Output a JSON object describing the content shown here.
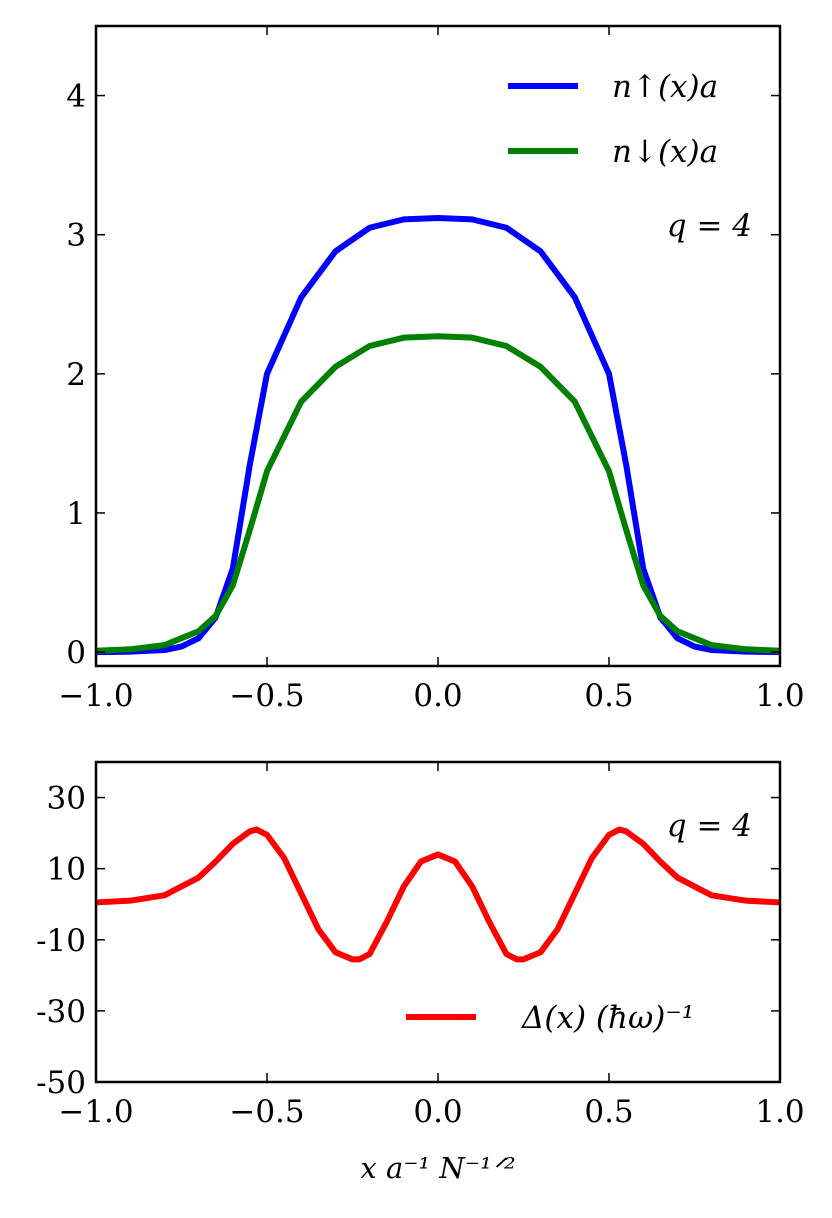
{
  "chart_data": [
    {
      "type": "line",
      "title": "",
      "xlabel": "",
      "ylabel": "",
      "xlim": [
        -1.0,
        1.0
      ],
      "ylim": [
        -0.1,
        4.5
      ],
      "x_ticks": [
        -1.0,
        -0.5,
        0.0,
        0.5,
        1.0
      ],
      "x_tick_labels": [
        "−1.0",
        "−0.5",
        "0.0",
        "0.5",
        "1.0"
      ],
      "y_ticks": [
        0,
        1,
        2,
        3,
        4
      ],
      "y_tick_labels": [
        "0",
        "1",
        "2",
        "3",
        "4"
      ],
      "annotation": "q = 4",
      "legend_position": "top-right",
      "series": [
        {
          "name": "n↑(x)a",
          "color": "#0000ff",
          "x": [
            -1.0,
            -0.9,
            -0.8,
            -0.75,
            -0.7,
            -0.65,
            -0.6,
            -0.55,
            -0.5,
            -0.4,
            -0.3,
            -0.2,
            -0.1,
            0.0,
            0.1,
            0.2,
            0.3,
            0.4,
            0.5,
            0.55,
            0.6,
            0.65,
            0.7,
            0.75,
            0.8,
            0.9,
            1.0
          ],
          "y": [
            0.0,
            0.003,
            0.015,
            0.04,
            0.1,
            0.25,
            0.6,
            1.35,
            2.0,
            2.55,
            2.88,
            3.05,
            3.11,
            3.12,
            3.11,
            3.05,
            2.88,
            2.55,
            2.0,
            1.35,
            0.6,
            0.25,
            0.1,
            0.04,
            0.015,
            0.003,
            0.0
          ]
        },
        {
          "name": "n↓(x)a",
          "color": "#008000",
          "x": [
            -1.0,
            -0.9,
            -0.8,
            -0.75,
            -0.7,
            -0.65,
            -0.6,
            -0.55,
            -0.5,
            -0.4,
            -0.3,
            -0.2,
            -0.1,
            0.0,
            0.1,
            0.2,
            0.3,
            0.4,
            0.5,
            0.55,
            0.6,
            0.65,
            0.7,
            0.75,
            0.8,
            0.9,
            1.0
          ],
          "y": [
            0.01,
            0.02,
            0.05,
            0.1,
            0.15,
            0.26,
            0.48,
            0.88,
            1.3,
            1.8,
            2.05,
            2.2,
            2.26,
            2.27,
            2.26,
            2.2,
            2.05,
            1.8,
            1.3,
            0.88,
            0.48,
            0.26,
            0.15,
            0.1,
            0.05,
            0.02,
            0.01
          ]
        }
      ]
    },
    {
      "type": "line",
      "title": "",
      "xlabel": "x a⁻¹ N⁻¹ᐟ²",
      "ylabel": "",
      "xlim": [
        -1.0,
        1.0
      ],
      "ylim": [
        -50,
        40
      ],
      "x_ticks": [
        -1.0,
        -0.5,
        0.0,
        0.5,
        1.0
      ],
      "x_tick_labels": [
        "−1.0",
        "−0.5",
        "0.0",
        "0.5",
        "1.0"
      ],
      "y_ticks": [
        30,
        10,
        -10,
        -30,
        -50
      ],
      "y_tick_labels": [
        "30",
        "10",
        "-10",
        "-30",
        "-50"
      ],
      "annotation": "q = 4",
      "legend_position": "bottom-right",
      "series": [
        {
          "name": "Δ(x) (ħω)⁻¹",
          "color": "#ff0000",
          "x": [
            -1.0,
            -0.9,
            -0.8,
            -0.7,
            -0.65,
            -0.6,
            -0.55,
            -0.53,
            -0.5,
            -0.45,
            -0.4,
            -0.35,
            -0.3,
            -0.25,
            -0.23,
            -0.2,
            -0.15,
            -0.1,
            -0.05,
            0.0,
            0.05,
            0.1,
            0.15,
            0.2,
            0.23,
            0.25,
            0.3,
            0.35,
            0.4,
            0.45,
            0.5,
            0.53,
            0.55,
            0.6,
            0.65,
            0.7,
            0.8,
            0.9,
            1.0
          ],
          "y": [
            0.5,
            1.0,
            2.5,
            7.5,
            12.0,
            17.0,
            20.5,
            21.0,
            19.5,
            13.0,
            3.0,
            -7.0,
            -13.5,
            -15.5,
            -15.5,
            -14.0,
            -5.0,
            5.0,
            12.0,
            14.0,
            12.0,
            5.0,
            -5.0,
            -14.0,
            -15.5,
            -15.5,
            -13.5,
            -7.0,
            3.0,
            13.0,
            19.5,
            21.0,
            20.5,
            17.0,
            12.0,
            7.5,
            2.5,
            1.0,
            0.5
          ]
        }
      ]
    }
  ],
  "x_axis_label": "x a⁻¹ N⁻¹ᐟ²"
}
